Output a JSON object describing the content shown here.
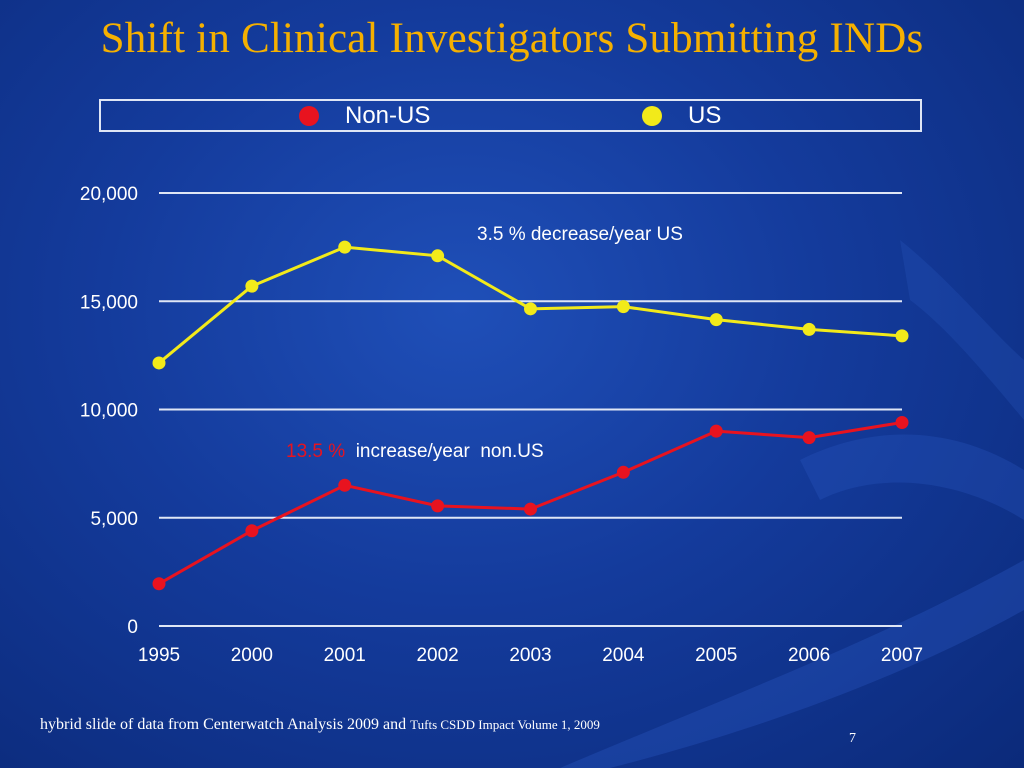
{
  "slide": {
    "title": "Shift in Clinical Investigators Submitting INDs",
    "footer_source": "hybrid slide of data from Centerwatch Analysis 2009 and",
    "footer_source_small": "Tufts CSDD Impact Volume 1, 2009",
    "page_number": "7"
  },
  "colors": {
    "title": "#f5b000",
    "us": "#f2ea1a",
    "non_us": "#e8131f",
    "grid": "#dfe6f5",
    "text": "#ffffff"
  },
  "chart_data": {
    "type": "line",
    "title": "",
    "xlabel": "",
    "ylabel": "",
    "categories": [
      "1995",
      "2000",
      "2001",
      "2002",
      "2003",
      "2004",
      "2005",
      "2006",
      "2007"
    ],
    "ylim": [
      0,
      20000
    ],
    "yticks": [
      0,
      5000,
      10000,
      15000,
      20000
    ],
    "ytick_labels": [
      "0",
      "5,000",
      "10,000",
      "15,000",
      "20,000"
    ],
    "grid": true,
    "legend": "top",
    "series": [
      {
        "name": "Non-US",
        "color": "#e8131f",
        "values": [
          1950,
          4400,
          6500,
          5550,
          5400,
          7100,
          9000,
          8700,
          9400
        ]
      },
      {
        "name": "US",
        "color": "#f2ea1a",
        "values": [
          12150,
          15700,
          17500,
          17100,
          14650,
          14750,
          14150,
          13700,
          13400
        ]
      }
    ],
    "annotations": [
      {
        "id": "us",
        "text": "3.5 % decrease/year  US",
        "color": "#ffffff"
      },
      {
        "id": "non_us",
        "text_part1": "13.5 %",
        "text_part2": "  increase/year  non.US",
        "color_part1": "#e8131f",
        "color_part2": "#ffffff"
      }
    ]
  }
}
